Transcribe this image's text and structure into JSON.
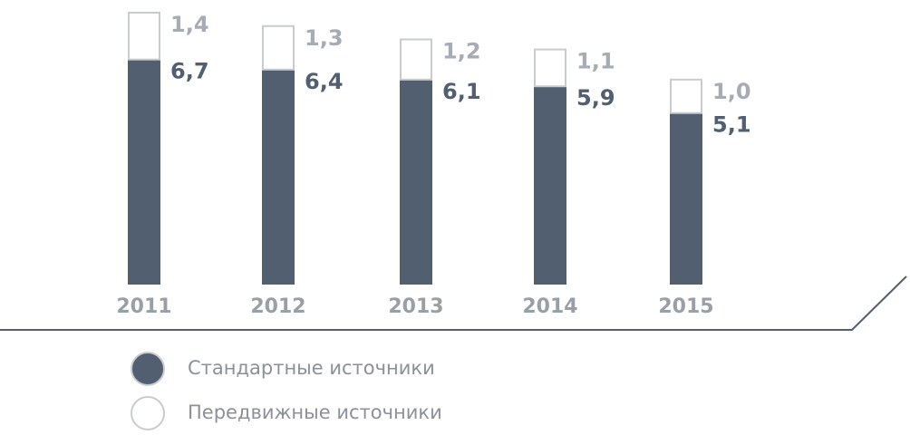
{
  "chart_data": {
    "type": "stacked-bar",
    "categories": [
      "2011",
      "2012",
      "2013",
      "2014",
      "2015"
    ],
    "series": [
      {
        "name": "Стандартные источники",
        "color": "#525f70",
        "values": [
          6.7,
          6.4,
          6.1,
          5.9,
          5.1
        ],
        "value_labels": [
          "6,7",
          "6,4",
          "6,1",
          "5,9",
          "5,1"
        ]
      },
      {
        "name": "Передвижные источники",
        "color": "#ffffff",
        "values": [
          1.4,
          1.3,
          1.2,
          1.1,
          1.0
        ],
        "value_labels": [
          "1,4",
          "1,3",
          "1,2",
          "1,1",
          "1,0"
        ]
      }
    ]
  }
}
